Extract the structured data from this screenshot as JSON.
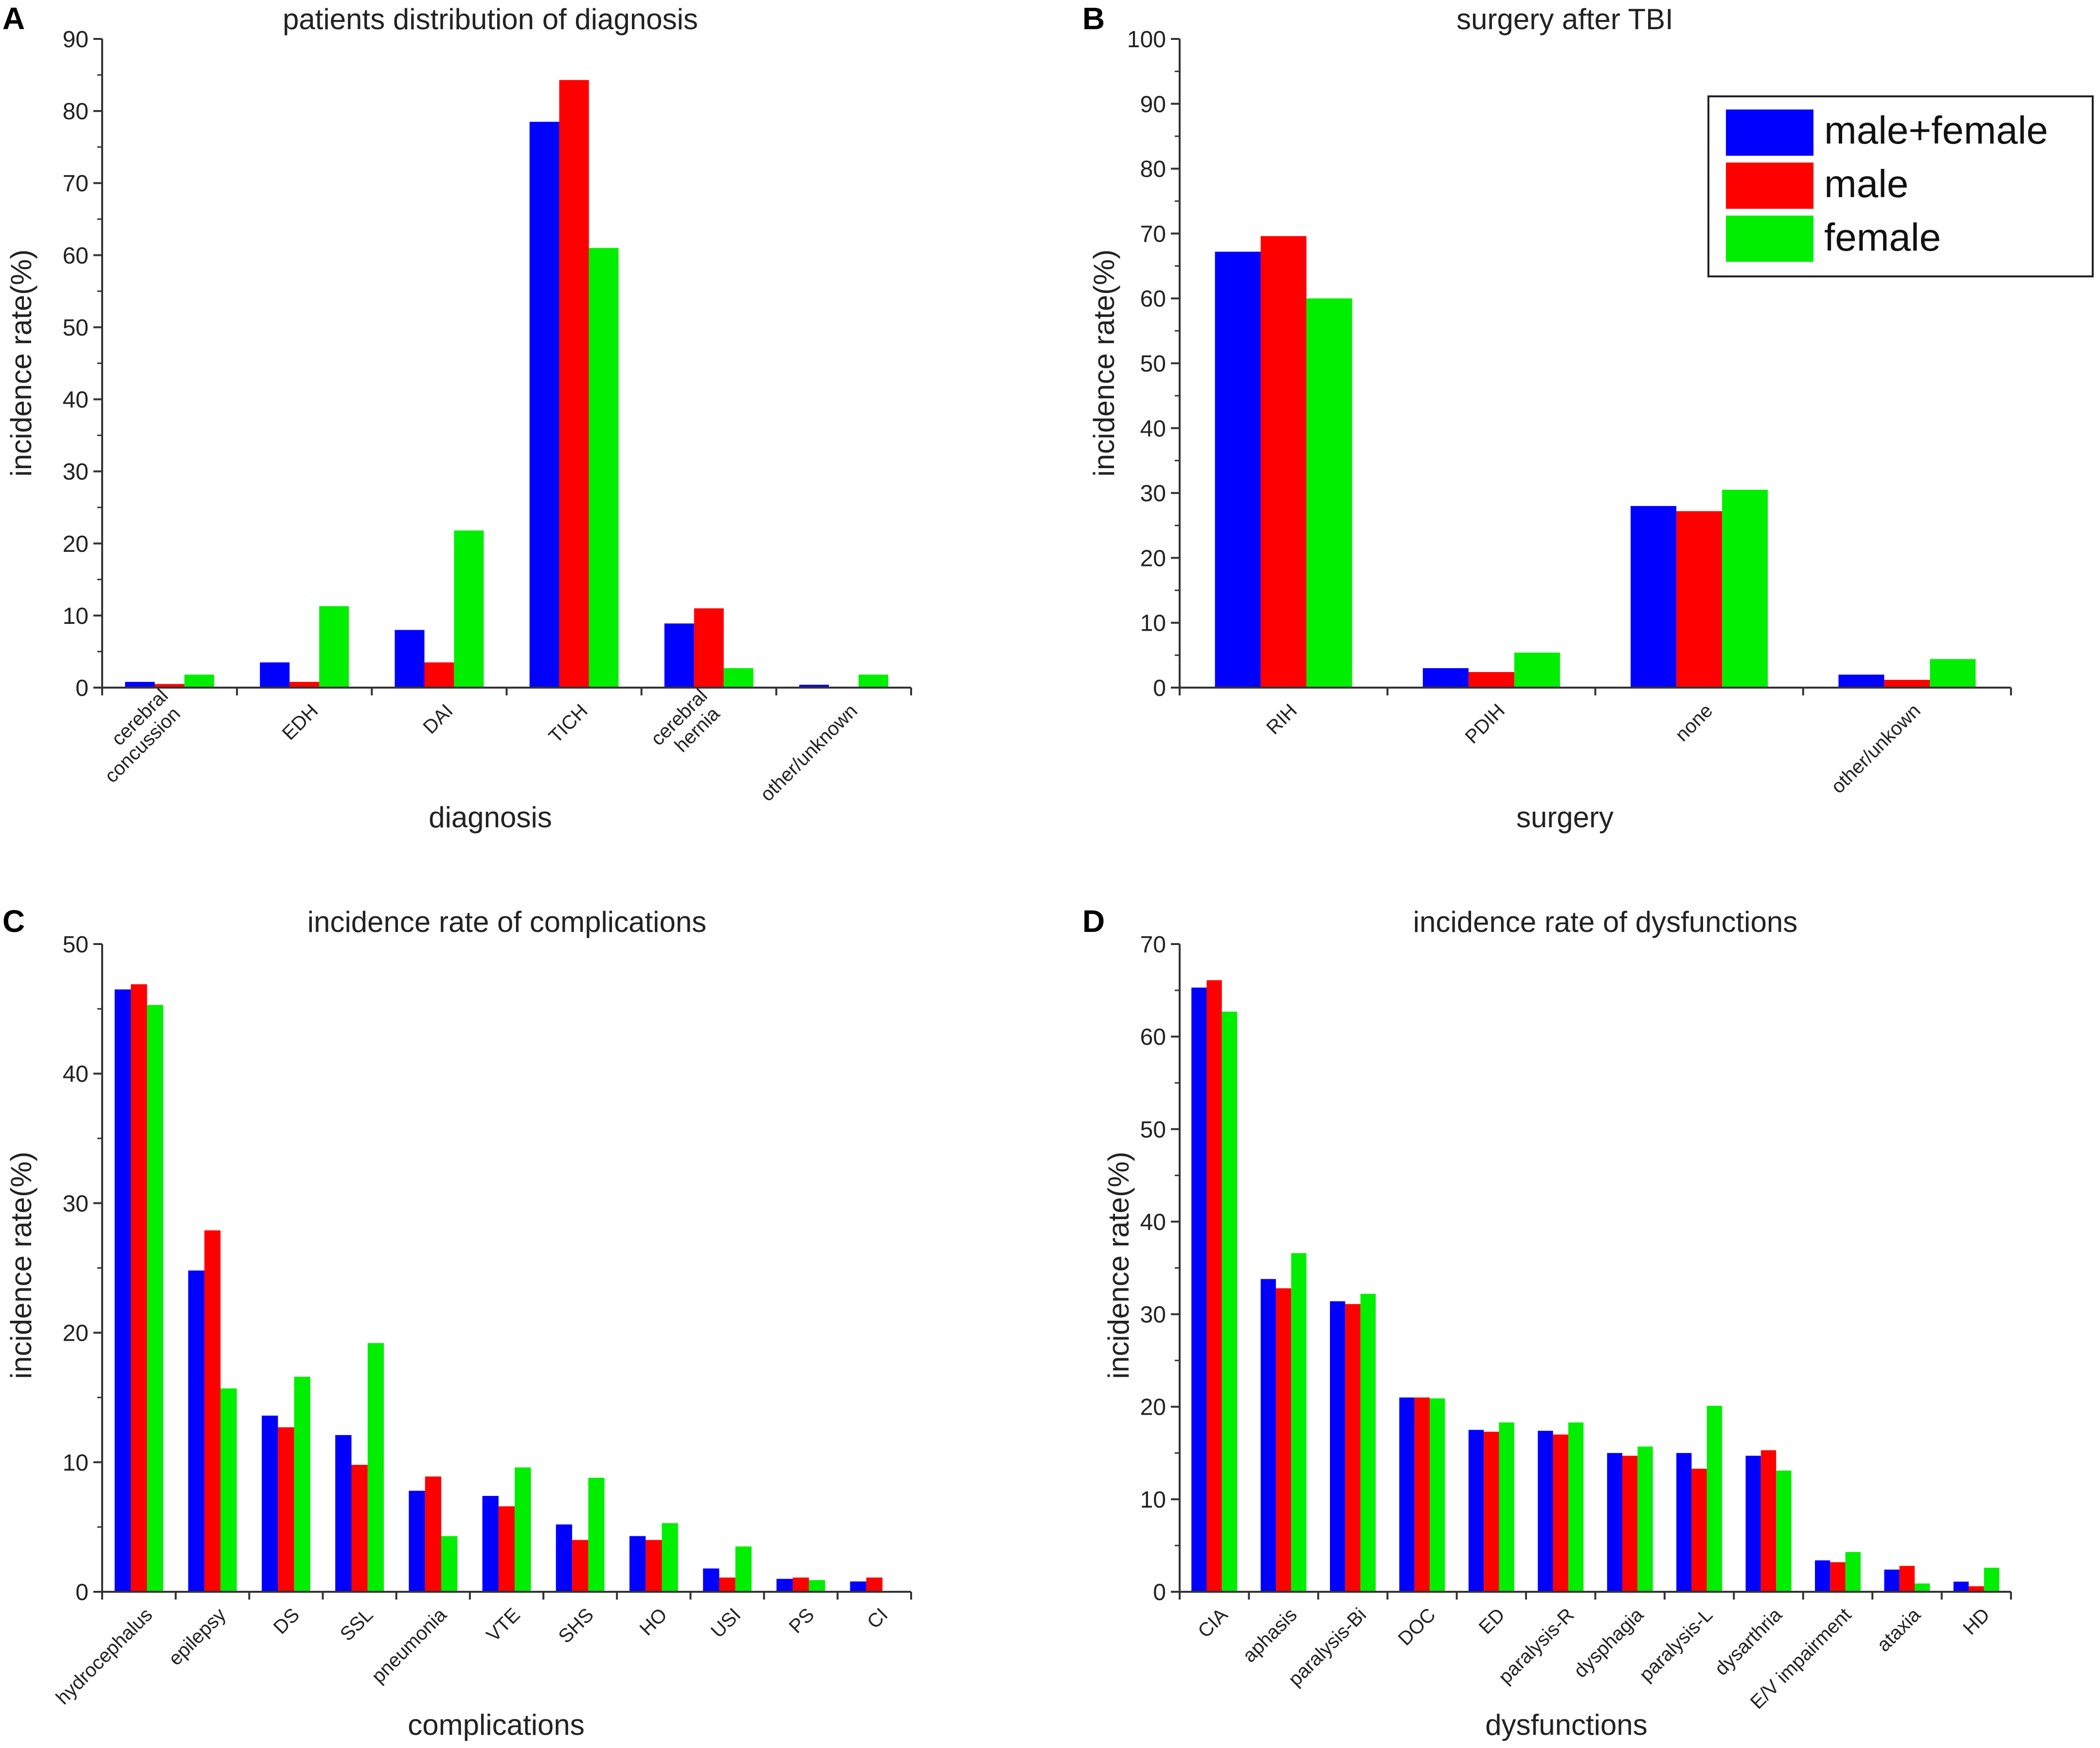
{
  "colors": {
    "male+female": "#0000ff",
    "male": "#ff0000",
    "female": "#00ee00",
    "axis": "#333333"
  },
  "legend": {
    "entries": [
      "male+female",
      "male",
      "female"
    ],
    "placement": "top-right of panel B"
  },
  "chart_data": [
    {
      "panel": "A",
      "type": "bar",
      "title": "patients distribution of diagnosis",
      "xlabel": "diagnosis",
      "ylabel": "incidence rate(%)",
      "ylim": [
        0,
        90
      ],
      "yticks": [
        0,
        10,
        20,
        30,
        40,
        50,
        60,
        70,
        80,
        90
      ],
      "categories": [
        "cerebral concussion",
        "EDH",
        "DAI",
        "TICH",
        "cerebral hernia",
        "other/unknown"
      ],
      "category_lines": [
        [
          "cerebral",
          "concussion"
        ],
        [
          "EDH"
        ],
        [
          "DAI"
        ],
        [
          "TICH"
        ],
        [
          "cerebral",
          "hernia"
        ],
        [
          "other/unknown"
        ]
      ],
      "series": [
        {
          "name": "male+female",
          "values": [
            0.8,
            3.5,
            8.0,
            78.5,
            8.9,
            0.4
          ]
        },
        {
          "name": "male",
          "values": [
            0.5,
            0.8,
            3.5,
            84.3,
            11.0,
            0.0
          ]
        },
        {
          "name": "female",
          "values": [
            1.8,
            11.3,
            21.8,
            61.0,
            2.7,
            1.8
          ]
        }
      ]
    },
    {
      "panel": "B",
      "type": "bar",
      "title": "surgery after TBI",
      "xlabel": "surgery",
      "ylabel": "incidence rate(%)",
      "ylim": [
        0,
        100
      ],
      "yticks": [
        0,
        10,
        20,
        30,
        40,
        50,
        60,
        70,
        80,
        90,
        100
      ],
      "categories": [
        "RIH",
        "PDIH",
        "none",
        "other/unkown"
      ],
      "category_lines": [
        [
          "RIH"
        ],
        [
          "PDIH"
        ],
        [
          "none"
        ],
        [
          "other/unkown"
        ]
      ],
      "series": [
        {
          "name": "male+female",
          "values": [
            67.2,
            3.0,
            28.0,
            2.0
          ]
        },
        {
          "name": "male",
          "values": [
            69.6,
            2.4,
            27.2,
            1.2
          ]
        },
        {
          "name": "female",
          "values": [
            60.0,
            5.4,
            30.5,
            4.4
          ]
        }
      ]
    },
    {
      "panel": "C",
      "type": "bar",
      "title": "incidence rate of complications",
      "xlabel": "complications",
      "ylabel": "incidence rate(%)",
      "ylim": [
        0,
        50
      ],
      "yticks": [
        0,
        10,
        20,
        30,
        40,
        50
      ],
      "categories": [
        "hydrocephalus",
        "epilepsy",
        "DS",
        "SSL",
        "pneumonia",
        "VTE",
        "SHS",
        "HO",
        "USI",
        "PS",
        "CI"
      ],
      "category_lines": [
        [
          "hydrocephalus"
        ],
        [
          "epilepsy"
        ],
        [
          "DS"
        ],
        [
          "SSL"
        ],
        [
          "pneumonia"
        ],
        [
          "VTE"
        ],
        [
          "SHS"
        ],
        [
          "HO"
        ],
        [
          "USI"
        ],
        [
          "PS"
        ],
        [
          "CI"
        ]
      ],
      "series": [
        {
          "name": "male+female",
          "values": [
            46.5,
            24.8,
            13.6,
            12.1,
            7.8,
            7.4,
            5.2,
            4.3,
            1.8,
            1.0,
            0.8
          ]
        },
        {
          "name": "male",
          "values": [
            46.9,
            27.9,
            12.7,
            9.8,
            8.9,
            6.6,
            4.0,
            4.0,
            1.1,
            1.1,
            1.1
          ]
        },
        {
          "name": "female",
          "values": [
            45.3,
            15.7,
            16.6,
            19.2,
            4.3,
            9.6,
            8.8,
            5.3,
            3.5,
            0.9,
            0.0
          ]
        }
      ]
    },
    {
      "panel": "D",
      "type": "bar",
      "title": "incidence rate of dysfunctions",
      "xlabel": "dysfunctions",
      "ylabel": "incidence rate(%)",
      "ylim": [
        0,
        70
      ],
      "yticks": [
        0,
        10,
        20,
        30,
        40,
        50,
        60,
        70
      ],
      "categories": [
        "CIA",
        "aphasis",
        "paralysis-Bi",
        "DOC",
        "ED",
        "paralysis-R",
        "dysphagia",
        "paralysis-L",
        "dysarthria",
        "E/V impairment",
        "ataxia",
        "HD"
      ],
      "category_lines": [
        [
          "CIA"
        ],
        [
          "aphasis"
        ],
        [
          "paralysis-Bi"
        ],
        [
          "DOC"
        ],
        [
          "ED"
        ],
        [
          "paralysis-R"
        ],
        [
          "dysphagia"
        ],
        [
          "paralysis-L"
        ],
        [
          "dysarthria"
        ],
        [
          "E/V impairment"
        ],
        [
          "ataxia"
        ],
        [
          "HD"
        ]
      ],
      "series": [
        {
          "name": "male+female",
          "values": [
            65.3,
            33.8,
            31.4,
            21.0,
            17.5,
            17.4,
            15.0,
            15.0,
            14.7,
            3.4,
            2.4,
            1.1
          ]
        },
        {
          "name": "male",
          "values": [
            66.1,
            32.8,
            31.1,
            21.0,
            17.3,
            17.0,
            14.7,
            13.3,
            15.3,
            3.2,
            2.8,
            0.6
          ]
        },
        {
          "name": "female",
          "values": [
            62.7,
            36.6,
            32.2,
            20.9,
            18.3,
            18.3,
            15.7,
            20.1,
            13.1,
            4.3,
            0.9,
            2.6
          ]
        }
      ]
    }
  ]
}
